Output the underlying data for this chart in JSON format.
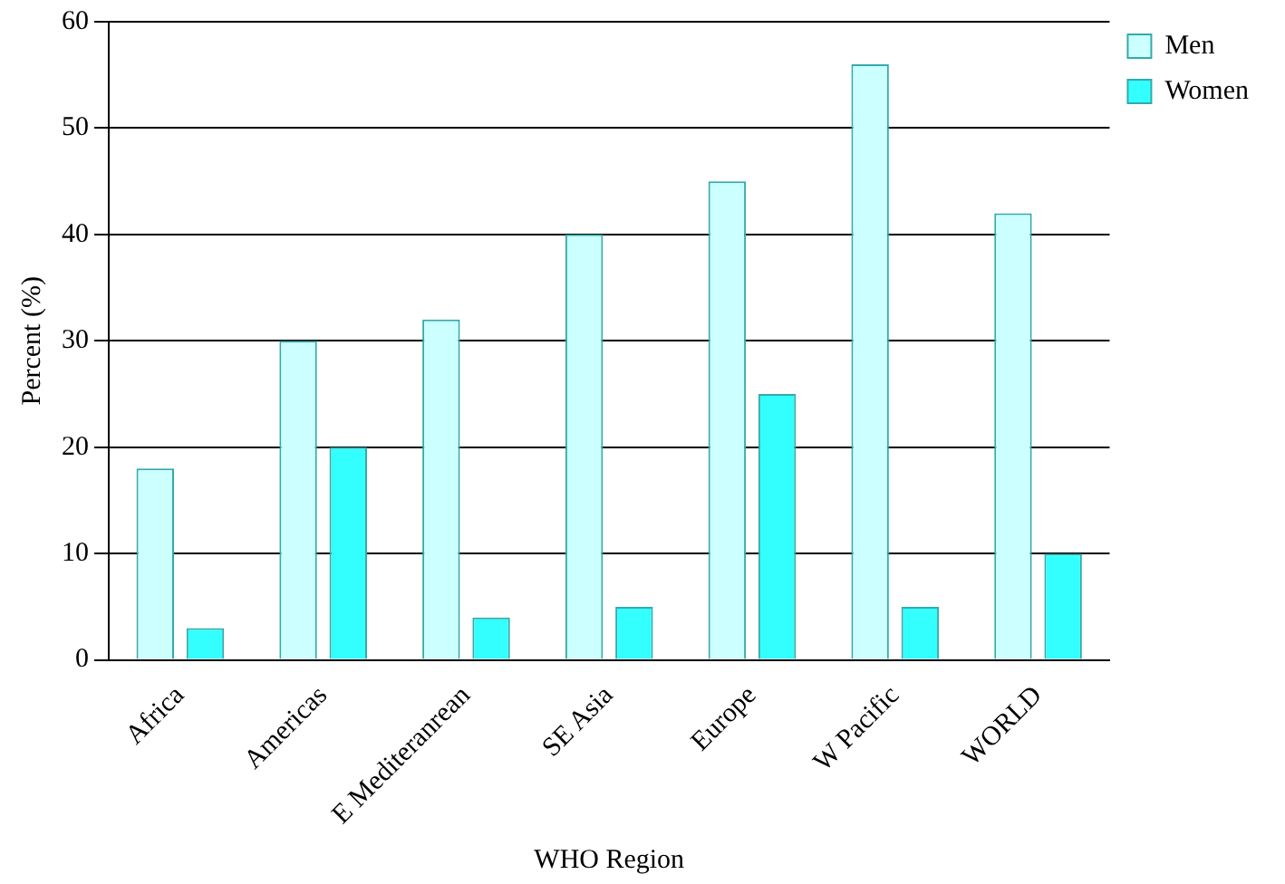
{
  "chart_data": {
    "type": "bar",
    "xlabel": "WHO Region",
    "ylabel": "Percent (%)",
    "categories": [
      "Africa",
      "Americas",
      "E Mediteranrean",
      "SE Asia",
      "Europe",
      "W Pacific",
      "WORLD"
    ],
    "series": [
      {
        "name": "Men",
        "color": "#ccffff",
        "values": [
          18,
          30,
          32,
          40,
          45,
          56,
          42
        ]
      },
      {
        "name": "Women",
        "color": "#33ffff",
        "values": [
          3,
          20,
          4,
          5,
          25,
          5,
          10
        ]
      }
    ],
    "ylim": [
      0,
      60
    ],
    "yticks": [
      0,
      10,
      20,
      30,
      40,
      50,
      60
    ],
    "grid": "y",
    "legend": "top right"
  }
}
